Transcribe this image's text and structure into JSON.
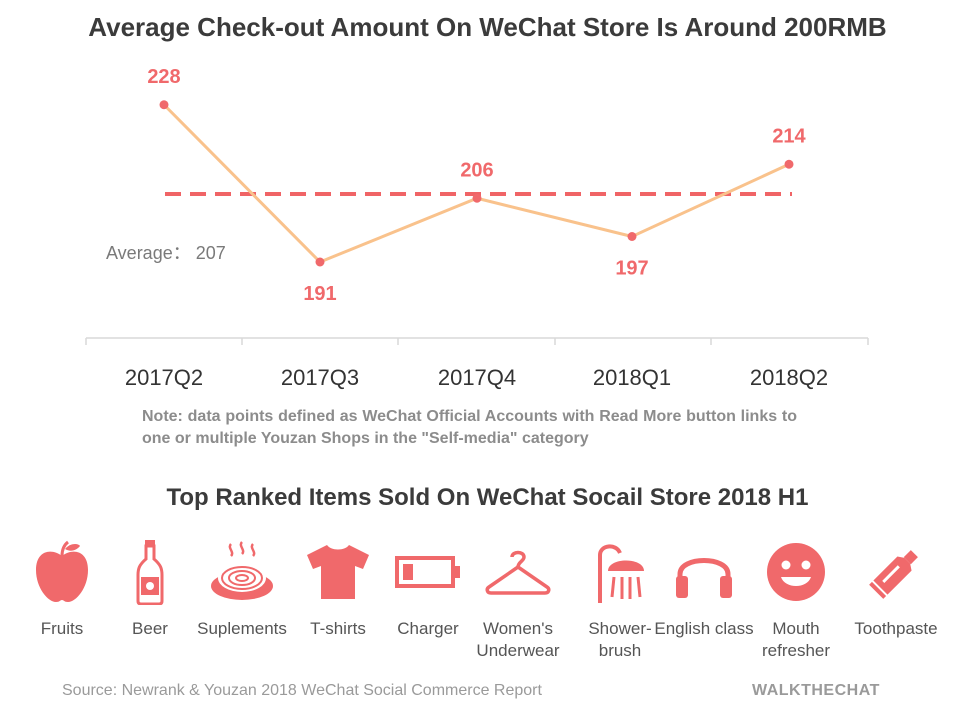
{
  "title": "Average Check-out Amount On WeChat Store Is Around 200RMB",
  "chart_data": {
    "type": "line",
    "categories": [
      "2017Q2",
      "2017Q3",
      "2017Q4",
      "2018Q1",
      "2018Q2"
    ],
    "values": [
      228,
      191,
      206,
      197,
      214
    ],
    "average": 207,
    "average_label": "Average： 207",
    "ylim": [
      175,
      235
    ],
    "grid": false,
    "colors": {
      "line": "#f9c28c",
      "point": "#f0696b",
      "average": "#f06466",
      "label": "#f0696b"
    }
  },
  "note": "Note: data points defined as WeChat Official Accounts with Read More button links to one or multiple Youzan Shops in the \"Self-media\" category",
  "subtitle": "Top Ranked Items Sold On WeChat Socail Store 2018 H1",
  "items": [
    {
      "label": "Fruits",
      "icon": "apple-icon"
    },
    {
      "label": "Beer",
      "icon": "bottle-icon"
    },
    {
      "label": "Suplements",
      "icon": "bowl-icon"
    },
    {
      "label": "T-shirts",
      "icon": "tshirt-icon"
    },
    {
      "label": "Charger",
      "icon": "battery-icon"
    },
    {
      "label": "Women's Underwear",
      "icon": "hanger-icon"
    },
    {
      "label": "Shower-brush",
      "icon": "shower-icon"
    },
    {
      "label": "English class",
      "icon": "headphones-icon"
    },
    {
      "label": "Mouth refresher",
      "icon": "smiley-icon"
    },
    {
      "label": "Toothpaste",
      "icon": "toothpaste-icon"
    }
  ],
  "icon_color": "#f0696b",
  "source": "Source: Newrank & Youzan 2018 WeChat Social Commerce Report",
  "brand": "WALKTHECHAT"
}
